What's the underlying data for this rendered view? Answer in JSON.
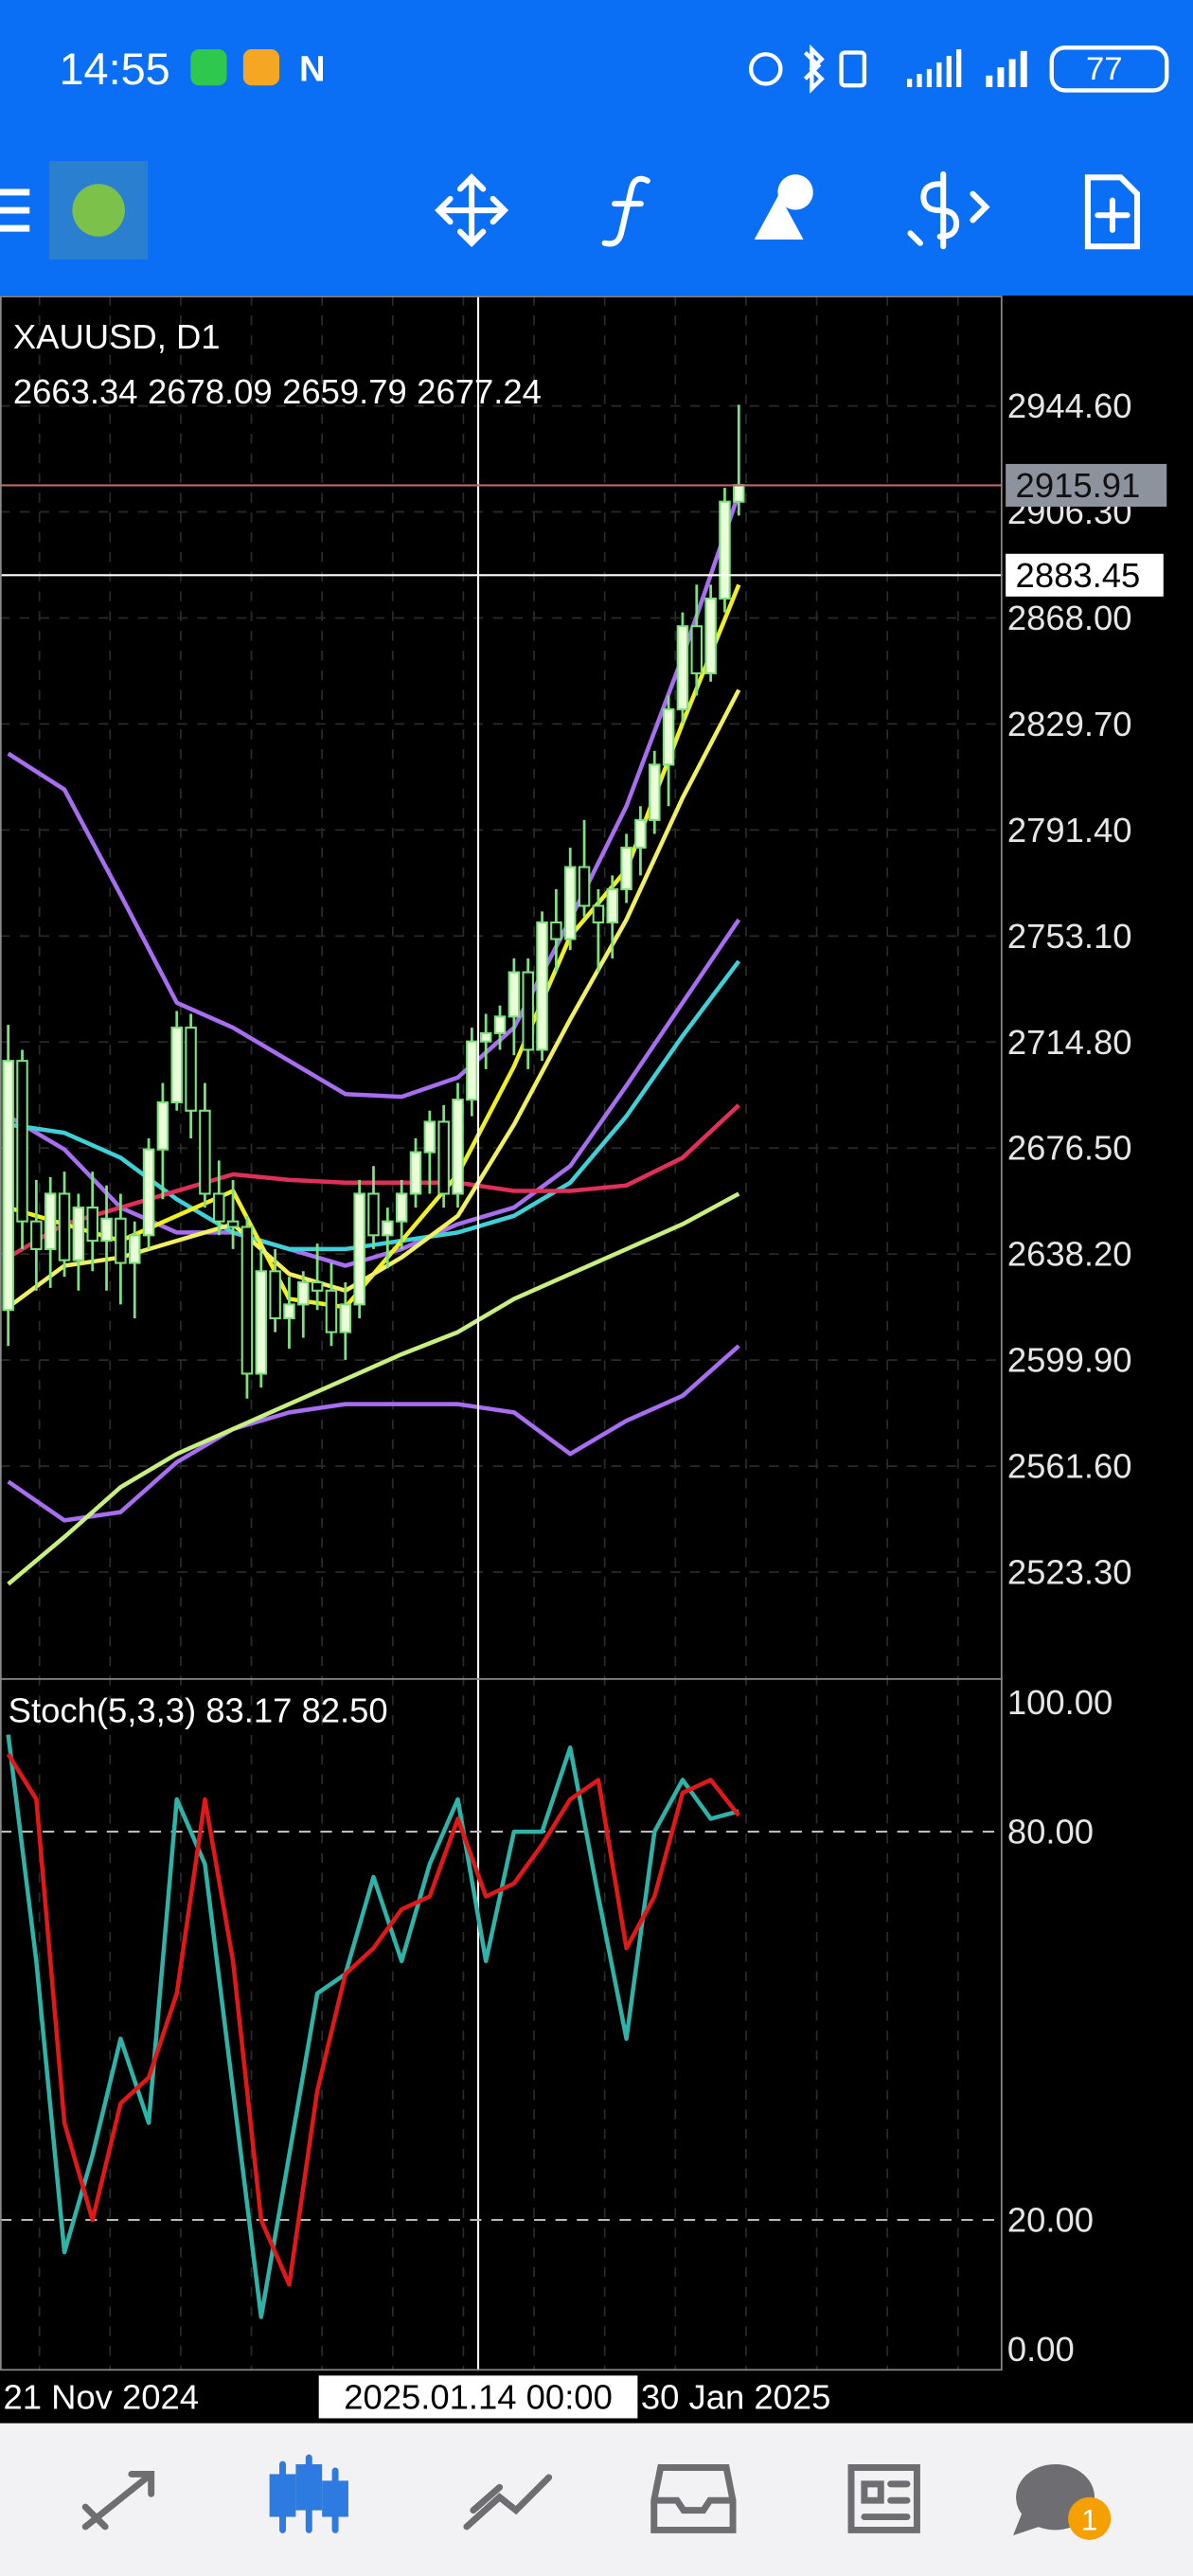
{
  "status_bar": {
    "time": "14:55",
    "battery": "77"
  },
  "nav_badge": "1",
  "chart_data": [
    {
      "type": "candlestick",
      "title": "XAUUSD, D1",
      "ohlc": [
        "2663.34",
        "2678.09",
        "2659.79",
        "2677.24"
      ],
      "open": [
        2618,
        2708,
        2650,
        2640,
        2660,
        2636,
        2655,
        2643,
        2651,
        2635,
        2645,
        2676,
        2693,
        2720,
        2690,
        2660,
        2650,
        2648,
        2595,
        2632,
        2615,
        2620,
        2628,
        2625,
        2610,
        2620,
        2660,
        2645,
        2650,
        2660,
        2675,
        2686,
        2660,
        2694,
        2715,
        2718,
        2724,
        2740,
        2712,
        2758,
        2752,
        2778,
        2764,
        2758,
        2770,
        2785,
        2795,
        2815,
        2835,
        2865,
        2848,
        2875,
        2910
      ],
      "high": [
        2721,
        2712,
        2665,
        2666,
        2668,
        2660,
        2668,
        2663,
        2660,
        2650,
        2680,
        2700,
        2726,
        2725,
        2700,
        2672,
        2665,
        2652,
        2640,
        2640,
        2630,
        2632,
        2642,
        2635,
        2628,
        2665,
        2670,
        2655,
        2665,
        2680,
        2690,
        2692,
        2700,
        2720,
        2725,
        2728,
        2745,
        2745,
        2762,
        2770,
        2785,
        2795,
        2770,
        2775,
        2790,
        2800,
        2820,
        2840,
        2870,
        2880,
        2880,
        2915,
        2945
      ],
      "low": [
        2605,
        2640,
        2625,
        2626,
        2630,
        2625,
        2632,
        2625,
        2620,
        2615,
        2640,
        2658,
        2690,
        2680,
        2655,
        2645,
        2640,
        2586,
        2590,
        2610,
        2604,
        2608,
        2618,
        2605,
        2600,
        2615,
        2640,
        2633,
        2640,
        2655,
        2660,
        2655,
        2655,
        2688,
        2705,
        2712,
        2710,
        2705,
        2708,
        2740,
        2748,
        2760,
        2740,
        2745,
        2765,
        2775,
        2790,
        2800,
        2830,
        2840,
        2845,
        2870,
        2905
      ],
      "close": [
        2708,
        2650,
        2640,
        2660,
        2636,
        2655,
        2643,
        2651,
        2635,
        2645,
        2676,
        2693,
        2720,
        2690,
        2660,
        2650,
        2648,
        2595,
        2632,
        2615,
        2620,
        2628,
        2625,
        2610,
        2620,
        2660,
        2645,
        2650,
        2660,
        2675,
        2686,
        2660,
        2694,
        2715,
        2718,
        2724,
        2740,
        2712,
        2758,
        2752,
        2778,
        2764,
        2758,
        2770,
        2785,
        2795,
        2815,
        2835,
        2865,
        2848,
        2875,
        2910,
        2916
      ],
      "color": "#7fe07f",
      "up_fill": "#eaffd8",
      "down_fill": "#000000",
      "indicators": {
        "x": [
          0,
          4,
          8,
          12,
          16,
          20,
          24,
          28,
          32,
          36,
          40,
          44,
          48,
          52
        ],
        "series": [
          {
            "color": "#a86ef0",
            "values": [
              2819,
              2806,
              2768,
              2729,
              2720,
              2708,
              2696,
              2695,
              2702,
              2720,
              2759,
              2800,
              2854,
              2913
            ]
          },
          {
            "color": "#a86ef0",
            "values": [
              2556,
              2542,
              2545,
              2563,
              2575,
              2581,
              2584,
              2584,
              2584,
              2581,
              2566,
              2578,
              2587,
              2605
            ]
          },
          {
            "color": "#a86ef0",
            "values": [
              2688,
              2676,
              2655,
              2646,
              2646,
              2640,
              2634,
              2640,
              2649,
              2655,
              2670,
              2699,
              2729,
              2759
            ]
          },
          {
            "color": "#3fd0d8",
            "values": [
              2685,
              2682,
              2673,
              2658,
              2646,
              2640,
              2640,
              2643,
              2646,
              2652,
              2664,
              2688,
              2717,
              2744
            ]
          },
          {
            "color": "#e0305a",
            "values": [
              2637,
              2649,
              2655,
              2661,
              2667,
              2665,
              2664,
              2664,
              2664,
              2661,
              2661,
              2663,
              2673,
              2692
            ]
          },
          {
            "color": "#c8f080",
            "values": [
              2519,
              2536,
              2554,
              2566,
              2575,
              2584,
              2593,
              2602,
              2610,
              2622,
              2631,
              2640,
              2649,
              2660
            ]
          },
          {
            "color": "#f0f020",
            "values": [
              2655,
              2649,
              2643,
              2652,
              2661,
              2622,
              2619,
              2643,
              2667,
              2706,
              2753,
              2777,
              2830,
              2880
            ]
          },
          {
            "color": "#f0f060",
            "values": [
              2619,
              2634,
              2637,
              2643,
              2649,
              2631,
              2625,
              2637,
              2652,
              2685,
              2723,
              2759,
              2803,
              2842
            ]
          }
        ]
      },
      "ylim": [
        2484.7,
        2984.4
      ],
      "yticks": [
        {
          "value": 2944.6,
          "label": "2944.60"
        },
        {
          "value": 2906.3,
          "label": "2906.30"
        },
        {
          "value": 2868,
          "label": "2868.00"
        },
        {
          "value": 2829.7,
          "label": "2829.70"
        },
        {
          "value": 2791.4,
          "label": "2791.40"
        },
        {
          "value": 2753.1,
          "label": "2753.10"
        },
        {
          "value": 2714.8,
          "label": "2714.80"
        },
        {
          "value": 2676.5,
          "label": "2676.50"
        },
        {
          "value": 2638.2,
          "label": "2638.20"
        },
        {
          "value": 2599.9,
          "label": "2599.90"
        },
        {
          "value": 2561.6,
          "label": "2561.60"
        },
        {
          "value": 2523.3,
          "label": "2523.30"
        }
      ],
      "grid": true,
      "price_lines": [
        {
          "value": 2915.91,
          "label": "2915.91",
          "color": "#b86a6a"
        },
        {
          "value": 2883.45,
          "label": "2883.45",
          "color": "#ffffff"
        }
      ],
      "crosshair_time": "2025.01.14 00:00",
      "x_labels": [
        "21 Nov 2024",
        "30 Jan 2025"
      ]
    },
    {
      "type": "line",
      "title": "Stoch(5,3,3) 83.17 82.50",
      "x": [
        0,
        2,
        4,
        6,
        8,
        10,
        12,
        14,
        16,
        18,
        20,
        22,
        24,
        26,
        28,
        30,
        32,
        34,
        36,
        38,
        40,
        42,
        44,
        46,
        48,
        50,
        52
      ],
      "series": [
        {
          "color": "#2fb3a8",
          "values": [
            95,
            60,
            15,
            30,
            48,
            35,
            85,
            75,
            40,
            5,
            30,
            55,
            58,
            73,
            60,
            75,
            85,
            60,
            80,
            80,
            93,
            70,
            48,
            80,
            88,
            82,
            83.17
          ]
        },
        {
          "color": "#e01818",
          "values": [
            92,
            85,
            35,
            20,
            38,
            42,
            55,
            85,
            60,
            20,
            10,
            40,
            58,
            62,
            68,
            70,
            82,
            70,
            72,
            78,
            85,
            88,
            62,
            70,
            86,
            88,
            82.5
          ]
        }
      ],
      "ylim": [
        -3.3,
        103.6
      ],
      "yticks": [
        {
          "value": 100,
          "label": "100.00"
        },
        {
          "value": 80,
          "label": "80.00"
        },
        {
          "value": 20,
          "label": "20.00"
        },
        {
          "value": 0,
          "label": "0.00"
        }
      ]
    }
  ]
}
